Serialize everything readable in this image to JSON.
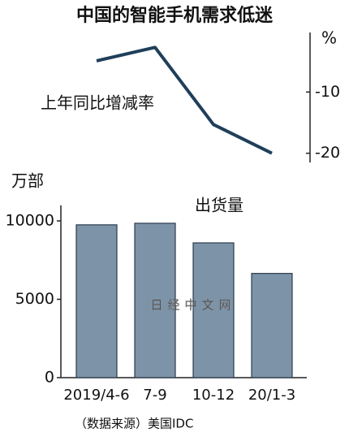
{
  "chart_data": [
    {
      "type": "line",
      "title": "中国的智能手机需求低迷",
      "axis_unit": "%",
      "label": "上年同比增减率",
      "categories": [
        "2019/4-6",
        "7-9",
        "10-12",
        "20/1-3"
      ],
      "values": [
        -4.9,
        -2.7,
        -15.3,
        -20
      ],
      "color": "#1f3f5a",
      "ylim": [
        -21.5,
        0
      ],
      "yticks": [
        -10,
        -20
      ]
    },
    {
      "type": "bar",
      "axis_unit": "万部",
      "label": "出货量",
      "watermark": "日经中文网",
      "categories": [
        "2019/4-6",
        "7-9",
        "10-12",
        "20/1-3"
      ],
      "values": [
        9750,
        9850,
        8600,
        6650
      ],
      "color": "#7d93a8",
      "ylim": [
        0,
        11000
      ],
      "yticks": [
        0,
        5000,
        10000
      ],
      "source": "（数据来源）美国IDC"
    }
  ]
}
